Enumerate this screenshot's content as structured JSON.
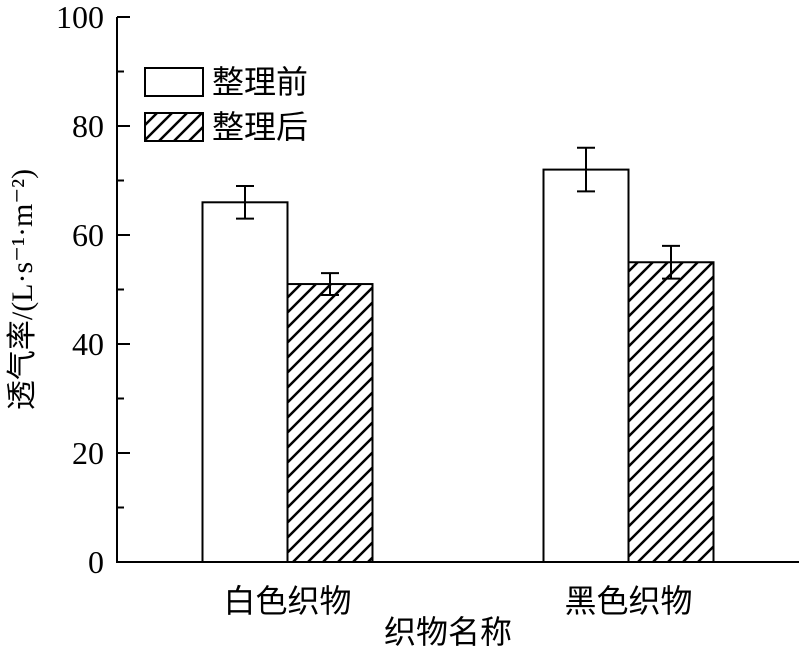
{
  "chart_data": {
    "type": "bar",
    "title": "",
    "xlabel": "织物名称",
    "ylabel": "透气率/(L·s⁻¹·m⁻²)",
    "categories": [
      "白色织物",
      "黑色织物"
    ],
    "series": [
      {
        "name": "整理前",
        "fill": "white",
        "values": [
          66,
          72
        ],
        "errors": [
          3,
          4
        ]
      },
      {
        "name": "整理后",
        "fill": "hatch",
        "values": [
          51,
          55
        ],
        "errors": [
          2,
          3
        ]
      }
    ],
    "ylim": [
      0,
      100
    ],
    "ytick_step": 20,
    "ytick_minor_step": 10,
    "yticks": [
      0,
      20,
      40,
      60,
      80,
      100
    ],
    "grid": false,
    "legend_position": "top-left-inside",
    "colors": {
      "line": "#000000",
      "bar_fill": "#ffffff",
      "background": "#ffffff"
    }
  }
}
